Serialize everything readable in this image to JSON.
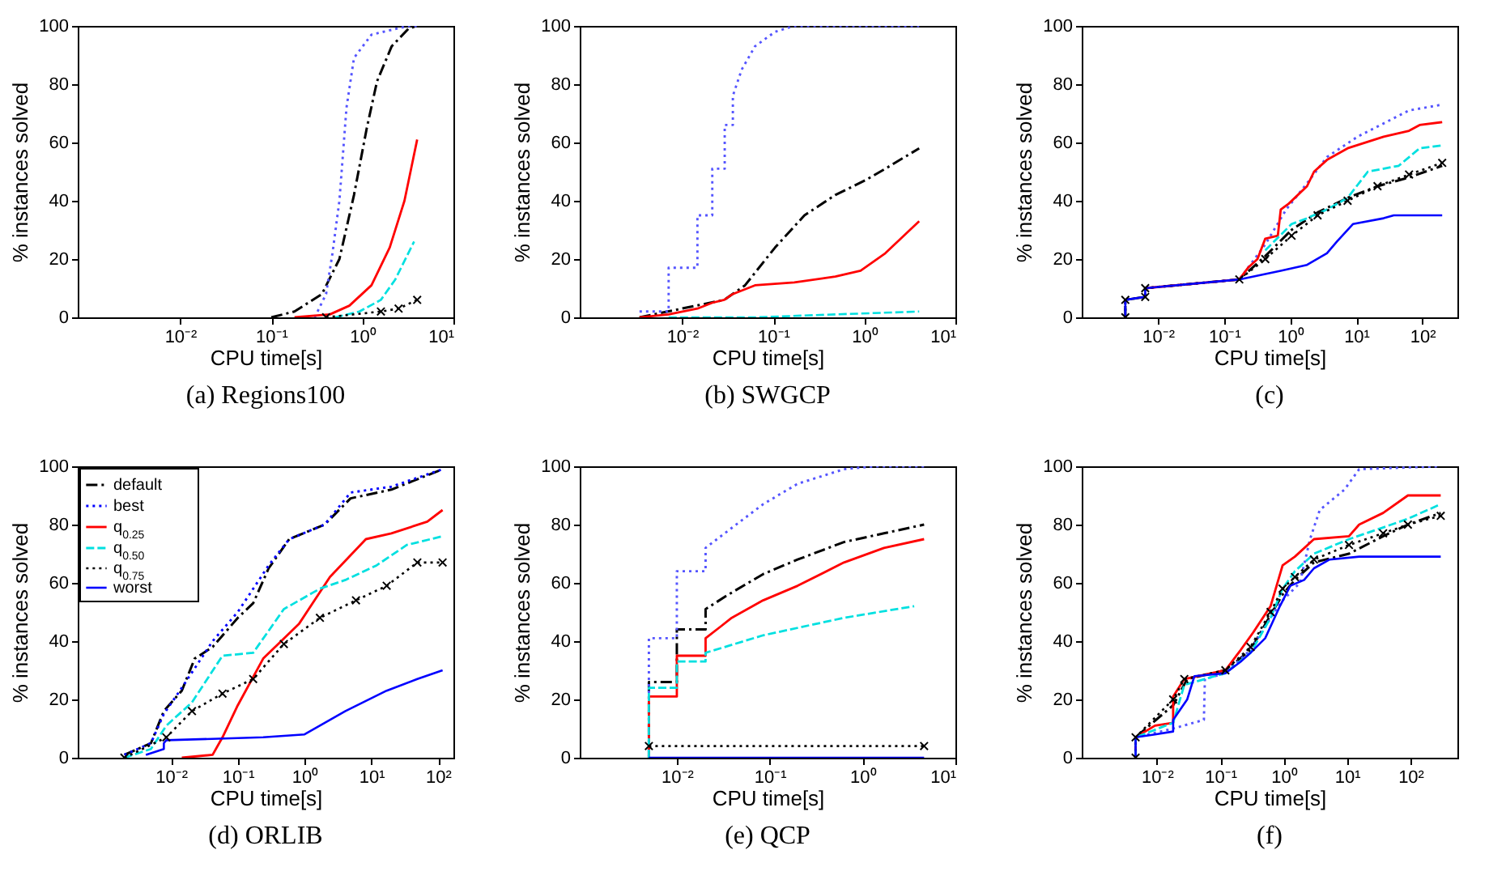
{
  "chart_data": [
    {
      "type": "line",
      "title": "(a) Regions100",
      "xlabel": "CPU time[s]",
      "ylabel": "% instances solved",
      "log": "x",
      "xlim": [
        0.00075,
        10
      ],
      "xticks": [
        {
          "value": 0.01,
          "label": "10⁻²"
        },
        {
          "value": 0.1,
          "label": "10⁻¹"
        },
        {
          "value": 1,
          "label": "10⁰"
        },
        {
          "value": 10,
          "label": "10¹"
        }
      ],
      "ylim": [
        0,
        100
      ],
      "yticks": [
        0,
        20,
        40,
        60,
        80,
        100
      ],
      "series": [
        {
          "color": "#000000",
          "line_style": "dashdot",
          "x": [
            0.1,
            0.18,
            0.36,
            0.56,
            0.81,
            1.12,
            1.45,
            2.1,
            3.2,
            4.0
          ],
          "values": [
            0,
            2,
            8,
            20,
            42,
            65,
            81,
            93,
            99,
            100
          ]
        },
        {
          "color": "#5555ff",
          "line_style": "dotted",
          "x": [
            0.3,
            0.4,
            0.47,
            0.56,
            0.67,
            0.81,
            1.26,
            3.2,
            4.0
          ],
          "values": [
            0,
            8,
            22,
            40,
            72,
            89,
            97,
            100,
            100
          ]
        },
        {
          "color": "#ff0000",
          "line_style": "solid",
          "x": [
            0.18,
            0.44,
            0.72,
            1.26,
            2.0,
            2.9,
            4.0
          ],
          "values": [
            0,
            1,
            4,
            11,
            24,
            40,
            61
          ]
        },
        {
          "color": "#00e0e0",
          "line_style": "dashed",
          "x": [
            0.5,
            0.93,
            1.6,
            2.3,
            3.7
          ],
          "values": [
            0,
            2,
            6,
            13,
            26
          ]
        },
        {
          "color": "#000000",
          "line_style": "dotted",
          "marker": "cross",
          "x": [
            0.4,
            1.6,
            2.5,
            4.0
          ],
          "values": [
            0,
            2,
            3,
            6
          ]
        }
      ]
    },
    {
      "type": "line",
      "title": "(b) SWGCP",
      "xlabel": "CPU time[s]",
      "ylabel": "% instances solved",
      "log": "x",
      "xlim": [
        0.00075,
        10
      ],
      "xticks": [
        {
          "value": 0.01,
          "label": "10⁻²"
        },
        {
          "value": 0.1,
          "label": "10⁻¹"
        },
        {
          "value": 1,
          "label": "10⁰"
        },
        {
          "value": 10,
          "label": "10¹"
        }
      ],
      "ylim": [
        0,
        100
      ],
      "yticks": [
        0,
        20,
        40,
        60,
        80,
        100
      ],
      "series": [
        {
          "color": "#000000",
          "line_style": "dashdot",
          "x": [
            0.0034,
            0.029,
            0.049,
            0.105,
            0.22,
            0.48,
            1.02,
            1.7,
            4.0
          ],
          "values": [
            0,
            6,
            11,
            24,
            35,
            42,
            47,
            51,
            58
          ]
        },
        {
          "color": "#5555ff",
          "line_style": "dotted",
          "x": [
            0.0034,
            0.0071,
            0.0071,
            0.0147,
            0.0147,
            0.0214,
            0.0214,
            0.0293,
            0.0293,
            0.036,
            0.036,
            0.045,
            0.063,
            0.105,
            0.17,
            4.0
          ],
          "values": [
            2,
            2,
            17,
            17,
            35,
            35,
            51,
            51,
            66,
            66,
            76,
            85,
            93,
            98,
            100,
            100
          ]
        },
        {
          "color": "#ff0000",
          "line_style": "solid",
          "x": [
            0.0034,
            0.0071,
            0.0147,
            0.0214,
            0.029,
            0.036,
            0.063,
            0.17,
            0.48,
            0.91,
            1.7,
            4.0
          ],
          "values": [
            0,
            1,
            3,
            5,
            6,
            8,
            11,
            12,
            14,
            16,
            22,
            33
          ]
        },
        {
          "color": "#00e0e0",
          "line_style": "dashed",
          "x": [
            0.0071,
            0.063,
            0.48,
            4.0
          ],
          "values": [
            0,
            0,
            1,
            2
          ]
        }
      ]
    },
    {
      "type": "line",
      "title": "(c)",
      "xlabel": "CPU time[s]",
      "ylabel": "% instances solved",
      "log": "x",
      "xlim": [
        0.0007,
        340
      ],
      "xticks": [
        {
          "value": 0.01,
          "label": "10⁻²"
        },
        {
          "value": 0.1,
          "label": "10⁻¹"
        },
        {
          "value": 1,
          "label": "10⁰"
        },
        {
          "value": 10,
          "label": "10¹"
        },
        {
          "value": 100,
          "label": "10²"
        }
      ],
      "ylim": [
        0,
        100
      ],
      "yticks": [
        0,
        20,
        40,
        60,
        80,
        100
      ],
      "series": [
        {
          "color": "#000000",
          "line_style": "dashdot",
          "x": [
            0.0032,
            0.0032,
            0.0064,
            0.0064,
            0.17,
            0.42,
            1.05,
            2.6,
            7.4,
            21,
            63,
            200
          ],
          "values": [
            0,
            6,
            7,
            10,
            13,
            21,
            30,
            36,
            41,
            45,
            48,
            52
          ]
        },
        {
          "color": "#5555ff",
          "line_style": "dotted",
          "x": [
            0.0032,
            0.0032,
            0.0064,
            0.0064,
            0.17,
            0.42,
            0.87,
            1.8,
            3.6,
            10.5,
            63,
            200
          ],
          "values": [
            0,
            6,
            7,
            10,
            13,
            25,
            37,
            46,
            55,
            62,
            71,
            73
          ]
        },
        {
          "color": "#ff0000",
          "line_style": "solid",
          "x": [
            0.0064,
            0.17,
            0.23,
            0.32,
            0.42,
            0.65,
            0.72,
            0.95,
            1.8,
            2.3,
            3.6,
            7.4,
            26,
            63,
            91,
            200
          ],
          "values": [
            10,
            13,
            17,
            20,
            27,
            28,
            37,
            39,
            45,
            50,
            54,
            58,
            62,
            64,
            66,
            67
          ]
        },
        {
          "color": "#00e0e0",
          "line_style": "dashed",
          "x": [
            0.42,
            1.05,
            1.8,
            3.6,
            7.4,
            15,
            44,
            91,
            200
          ],
          "values": [
            23,
            32,
            34,
            37,
            41,
            50,
            52,
            58,
            59
          ]
        },
        {
          "color": "#000000",
          "line_style": "dotted",
          "marker": "cross",
          "x": [
            0.0032,
            0.0032,
            0.0064,
            0.0064,
            0.17,
            0.42,
            1.05,
            2.6,
            7.4,
            21,
            63,
            200
          ],
          "values": [
            0,
            6,
            7,
            10,
            13,
            20,
            28,
            35,
            40,
            45,
            49,
            53
          ]
        },
        {
          "color": "#0000ff",
          "line_style": "solid",
          "x": [
            0.0032,
            0.0032,
            0.0064,
            0.0064,
            0.17,
            0.72,
            1.8,
            3.6,
            5.1,
            8.9,
            26,
            37,
            200
          ],
          "values": [
            0,
            6,
            7,
            10,
            13,
            16,
            18,
            22,
            26,
            32,
            34,
            35,
            35
          ]
        }
      ]
    },
    {
      "type": "line",
      "title": "(d) ORLIB",
      "xlabel": "CPU time[s]",
      "ylabel": "% instances solved",
      "log": "x",
      "legend": "top left",
      "xlim": [
        0.0004,
        170
      ],
      "xticks": [
        {
          "value": 0.01,
          "label": "10⁻²"
        },
        {
          "value": 0.1,
          "label": "10⁻¹"
        },
        {
          "value": 1,
          "label": "10⁰"
        },
        {
          "value": 10,
          "label": "10¹"
        },
        {
          "value": 100,
          "label": "10²"
        }
      ],
      "ylim": [
        0,
        100
      ],
      "yticks": [
        0,
        20,
        40,
        60,
        80,
        100
      ],
      "series": [
        {
          "name": "default",
          "color": "#000000",
          "line_style": "dashdot",
          "x": [
            0.002,
            0.005,
            0.0078,
            0.0145,
            0.0226,
            0.042,
            0.1,
            0.17,
            0.29,
            0.59,
            2.0,
            4.9,
            20,
            117
          ],
          "values": [
            1,
            5,
            16,
            23,
            34,
            38,
            48,
            53,
            65,
            75,
            80,
            89,
            92,
            99
          ]
        },
        {
          "name": "best",
          "color": "#0000ff",
          "line_style": "dotted",
          "x": [
            0.002,
            0.005,
            0.0078,
            0.0145,
            0.042,
            0.1,
            0.29,
            0.59,
            2.0,
            4.9,
            20,
            117
          ],
          "values": [
            1,
            5,
            15,
            24,
            40,
            50,
            66,
            75,
            80,
            91,
            93,
            99
          ]
        },
        {
          "name": "q$_{0.25}$",
          "color": "#ff0000",
          "line_style": "solid",
          "x": [
            0.0145,
            0.042,
            0.059,
            0.1,
            0.24,
            0.83,
            2.4,
            8.3,
            20,
            69,
            117
          ],
          "values": [
            0,
            1,
            7,
            18,
            34,
            46,
            62,
            75,
            77,
            81,
            85
          ]
        },
        {
          "name": "q$_{0.50}$",
          "color": "#00e0e0",
          "line_style": "dashed",
          "x": [
            0.002,
            0.005,
            0.0085,
            0.0206,
            0.059,
            0.17,
            0.49,
            1.7,
            4.1,
            12,
            34,
            117
          ],
          "values": [
            0,
            3,
            11,
            19,
            35,
            36,
            51,
            58,
            61,
            66,
            73,
            76
          ]
        },
        {
          "name": "q$_{0.75}$",
          "color": "#000000",
          "line_style": "dotted",
          "marker": "cross",
          "x": [
            0.002,
            0.0085,
            0.0206,
            0.059,
            0.17,
            0.49,
            1.7,
            5.9,
            17,
            49,
            117
          ],
          "values": [
            0,
            7,
            16,
            22,
            27,
            39,
            48,
            54,
            59,
            67,
            67
          ]
        },
        {
          "name": "worst",
          "color": "#0000ff",
          "line_style": "solid",
          "x": [
            0.0042,
            0.0078,
            0.0078,
            0.0085,
            0.24,
            1.0,
            4.1,
            17,
            49,
            117
          ],
          "values": [
            1,
            3,
            5,
            6,
            7,
            8,
            16,
            23,
            27,
            30
          ]
        }
      ]
    },
    {
      "type": "line",
      "title": "(e) QCP",
      "xlabel": "CPU time[s]",
      "ylabel": "% instances solved",
      "log": "x",
      "xlim": [
        0.0009,
        10
      ],
      "xticks": [
        {
          "value": 0.01,
          "label": "10⁻²"
        },
        {
          "value": 0.1,
          "label": "10⁻¹"
        },
        {
          "value": 1,
          "label": "10⁰"
        },
        {
          "value": 10,
          "label": "10¹"
        }
      ],
      "ylim": [
        0,
        100
      ],
      "yticks": [
        0,
        20,
        40,
        60,
        80,
        100
      ],
      "series": [
        {
          "color": "#000000",
          "line_style": "dashdot",
          "x": [
            0.005,
            0.005,
            0.01,
            0.01,
            0.0204,
            0.0204,
            0.036,
            0.085,
            0.2,
            0.63,
            1.7,
            4.6
          ],
          "values": [
            0,
            26,
            26,
            44,
            44,
            51,
            56,
            63,
            68,
            74,
            77,
            80
          ]
        },
        {
          "color": "#5555ff",
          "line_style": "dotted",
          "x": [
            0.005,
            0.005,
            0.01,
            0.01,
            0.0204,
            0.0204,
            0.036,
            0.085,
            0.2,
            0.63,
            1.35,
            4.6
          ],
          "values": [
            0,
            41,
            41,
            64,
            64,
            72,
            78,
            87,
            94,
            99,
            100,
            100
          ]
        },
        {
          "color": "#ff0000",
          "line_style": "solid",
          "x": [
            0.005,
            0.005,
            0.01,
            0.01,
            0.0204,
            0.0204,
            0.0296,
            0.039,
            0.085,
            0.2,
            0.63,
            1.7,
            4.6
          ],
          "values": [
            0,
            21,
            21,
            35,
            35,
            41,
            45,
            48,
            54,
            59,
            67,
            72,
            75
          ]
        },
        {
          "color": "#00e0e0",
          "line_style": "dashed",
          "x": [
            0.005,
            0.005,
            0.01,
            0.01,
            0.0204,
            0.0204,
            0.085,
            0.63,
            3.6
          ],
          "values": [
            0,
            24,
            24,
            33,
            33,
            36,
            42,
            48,
            52
          ]
        },
        {
          "color": "#000000",
          "line_style": "dotted",
          "marker": "cross",
          "x": [
            0.005,
            4.6
          ],
          "values": [
            4,
            4
          ]
        },
        {
          "color": "#0000ff",
          "line_style": "solid",
          "x": [
            0.005,
            4.6
          ],
          "values": [
            0,
            0
          ]
        }
      ]
    },
    {
      "type": "line",
      "title": "(f)",
      "xlabel": "CPU time[s]",
      "ylabel": "% instances solved",
      "log": "x",
      "xlim": [
        0.00065,
        550
      ],
      "xticks": [
        {
          "value": 0.01,
          "label": "10⁻²"
        },
        {
          "value": 0.1,
          "label": "10⁻¹"
        },
        {
          "value": 1,
          "label": "10⁰"
        },
        {
          "value": 10,
          "label": "10¹"
        },
        {
          "value": 100,
          "label": "10²"
        }
      ],
      "ylim": [
        0,
        100
      ],
      "yticks": [
        0,
        20,
        40,
        60,
        80,
        100
      ],
      "series": [
        {
          "color": "#000000",
          "line_style": "dashdot",
          "x": [
            0.0046,
            0.0046,
            0.018,
            0.03,
            0.12,
            0.3,
            0.62,
            0.96,
            1.5,
            3.0,
            10.7,
            37,
            91,
            300
          ],
          "values": [
            0,
            7,
            18,
            27,
            30,
            37,
            49,
            56,
            61,
            67,
            70,
            76,
            80,
            84
          ]
        },
        {
          "color": "#5555ff",
          "line_style": "dotted",
          "x": [
            0.0046,
            0.0046,
            0.018,
            0.055,
            0.057,
            0.12,
            0.3,
            0.87,
            1.8,
            2.6,
            3.7,
            9.1,
            15.5,
            300
          ],
          "values": [
            0,
            7,
            10,
            13,
            27,
            29,
            37,
            53,
            60,
            75,
            85,
            92,
            99,
            100
          ]
        },
        {
          "color": "#ff0000",
          "line_style": "solid",
          "x": [
            0.0046,
            0.0046,
            0.0093,
            0.018,
            0.018,
            0.027,
            0.12,
            0.21,
            0.33,
            0.62,
            0.96,
            1.5,
            3.0,
            10.7,
            15.5,
            37,
            91,
            300
          ],
          "values": [
            0,
            7,
            11,
            12,
            21,
            27,
            30,
            37,
            43,
            52,
            66,
            69,
            75,
            76,
            80,
            84,
            90,
            90
          ]
        },
        {
          "color": "#00e0e0",
          "line_style": "dashed",
          "x": [
            0.0046,
            0.0046,
            0.018,
            0.027,
            0.12,
            0.3,
            0.62,
            0.96,
            1.5,
            3.0,
            10.7,
            37,
            91,
            300
          ],
          "values": [
            0,
            7,
            12,
            25,
            29,
            36,
            48,
            58,
            64,
            70,
            75,
            79,
            82,
            87
          ]
        },
        {
          "color": "#000000",
          "line_style": "dotted",
          "marker": "cross",
          "x": [
            0.0046,
            0.0046,
            0.018,
            0.027,
            0.12,
            0.3,
            0.62,
            0.96,
            1.5,
            3.0,
            10.7,
            37,
            91,
            300
          ],
          "values": [
            0,
            7,
            20,
            27,
            30,
            38,
            50,
            58,
            62,
            68,
            73,
            77,
            80,
            83
          ]
        },
        {
          "color": "#0000ff",
          "line_style": "solid",
          "x": [
            0.0046,
            0.0046,
            0.0093,
            0.018,
            0.018,
            0.03,
            0.039,
            0.12,
            0.21,
            0.3,
            0.51,
            0.87,
            1.27,
            2.1,
            3.0,
            5.3,
            15.5,
            300
          ],
          "values": [
            0,
            7,
            8,
            9,
            13,
            20,
            28,
            29,
            33,
            36,
            41,
            52,
            59,
            61,
            65,
            68,
            69,
            69
          ]
        }
      ]
    }
  ]
}
